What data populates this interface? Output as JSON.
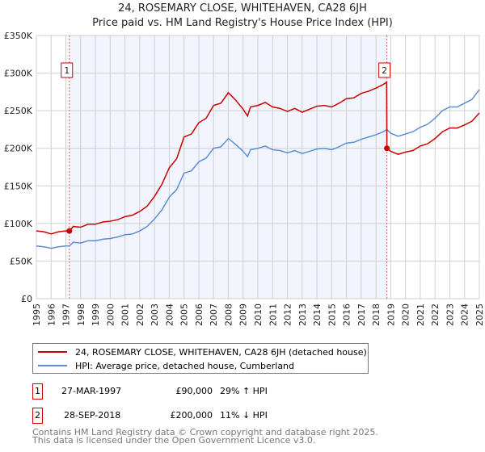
{
  "chart_data": {
    "type": "line",
    "title": "24, ROSEMARY CLOSE, WHITEHAVEN, CA28 6JH",
    "subtitle": "Price paid vs. HM Land Registry's House Price Index (HPI)",
    "xlim": [
      1995,
      2025
    ],
    "ylim": [
      0,
      350000
    ],
    "y_ticks": [
      0,
      50000,
      100000,
      150000,
      200000,
      250000,
      300000,
      350000
    ],
    "y_tick_labels": [
      "£0",
      "£50K",
      "£100K",
      "£150K",
      "£200K",
      "£250K",
      "£300K",
      "£350K"
    ],
    "x_ticks": [
      "1995",
      "1996",
      "1997",
      "1998",
      "1999",
      "2000",
      "2001",
      "2002",
      "2003",
      "2004",
      "2005",
      "2006",
      "2007",
      "2008",
      "2009",
      "2010",
      "2011",
      "2012",
      "2013",
      "2014",
      "2015",
      "2016",
      "2017",
      "2018",
      "2019",
      "2020",
      "2021",
      "2022",
      "2023",
      "2024",
      "2025"
    ],
    "grid": true,
    "shaded_range": [
      1997.23,
      2018.74
    ],
    "series": [
      {
        "name": "24, ROSEMARY CLOSE, WHITEHAVEN, CA28 6JH (detached house)",
        "color": "#cc0000",
        "x": [
          1995,
          1995.5,
          1996,
          1996.5,
          1997,
          1997.23,
          1997.5,
          1998,
          1998.5,
          1999,
          1999.5,
          2000,
          2000.5,
          2001,
          2001.5,
          2002,
          2002.5,
          2003,
          2003.5,
          2004,
          2004.5,
          2005,
          2005.5,
          2006,
          2006.5,
          2007,
          2007.5,
          2008,
          2008.5,
          2009,
          2009.3,
          2009.5,
          2010,
          2010.5,
          2011,
          2011.5,
          2012,
          2012.5,
          2013,
          2013.5,
          2014,
          2014.5,
          2015,
          2015.5,
          2016,
          2016.5,
          2017,
          2017.5,
          2018,
          2018.5,
          2018.72,
          2018.74,
          2019,
          2019.5,
          2020,
          2020.5,
          2021,
          2021.5,
          2022,
          2022.5,
          2023,
          2023.5,
          2024,
          2024.5,
          2025
        ],
        "y": [
          90,
          89,
          86,
          89,
          90,
          90,
          96,
          95,
          99,
          99,
          102,
          103,
          105,
          109,
          111,
          116,
          123,
          136,
          152,
          174,
          186,
          215,
          219,
          234,
          240,
          257,
          260,
          274,
          264,
          252,
          243,
          255,
          257,
          261,
          255,
          253,
          249,
          253,
          248,
          252,
          256,
          257,
          255,
          260,
          266,
          267,
          273,
          276,
          280,
          285,
          288,
          200,
          196,
          192,
          195,
          197,
          203,
          206,
          213,
          222,
          227,
          227,
          231,
          236,
          247
        ]
      },
      {
        "name": "HPI: Average price, detached house, Cumberland",
        "color": "#5b8fd4",
        "x": [
          1995,
          1995.5,
          1996,
          1996.5,
          1997,
          1997.23,
          1997.5,
          1998,
          1998.5,
          1999,
          1999.5,
          2000,
          2000.5,
          2001,
          2001.5,
          2002,
          2002.5,
          2003,
          2003.5,
          2004,
          2004.5,
          2005,
          2005.5,
          2006,
          2006.5,
          2007,
          2007.5,
          2008,
          2008.5,
          2009,
          2009.3,
          2009.5,
          2010,
          2010.5,
          2011,
          2011.5,
          2012,
          2012.5,
          2013,
          2013.5,
          2014,
          2014.5,
          2015,
          2015.5,
          2016,
          2016.5,
          2017,
          2017.5,
          2018,
          2018.5,
          2018.74,
          2019,
          2019.5,
          2020,
          2020.5,
          2021,
          2021.5,
          2022,
          2022.5,
          2023,
          2023.5,
          2024,
          2024.5,
          2025
        ],
        "y": [
          70,
          69,
          67,
          69,
          70,
          70,
          75,
          74,
          77,
          77,
          79,
          80,
          82,
          85,
          86,
          90,
          96,
          106,
          118,
          135,
          145,
          167,
          170,
          182,
          187,
          200,
          202,
          213,
          205,
          196,
          189,
          198,
          200,
          203,
          198,
          197,
          194,
          197,
          193,
          196,
          199,
          200,
          198,
          202,
          207,
          208,
          212,
          215,
          218,
          222,
          225,
          220,
          216,
          219,
          222,
          228,
          232,
          240,
          250,
          255,
          255,
          260,
          265,
          278
        ]
      }
    ],
    "y_units": "thousands GBP",
    "annotations": [
      {
        "label": "1",
        "x": 1997.23,
        "y": 90
      },
      {
        "label": "2",
        "x": 2018.74,
        "y": 200
      }
    ]
  },
  "legend": {
    "property": "24, ROSEMARY CLOSE, WHITEHAVEN, CA28 6JH (detached house)",
    "hpi": "HPI: Average price, detached house, Cumberland"
  },
  "transactions": [
    {
      "num": "1",
      "date": "27-MAR-1997",
      "price": "£90,000",
      "hpi": "29% ↑ HPI"
    },
    {
      "num": "2",
      "date": "28-SEP-2018",
      "price": "£200,000",
      "hpi": "11% ↓ HPI"
    }
  ],
  "footer": {
    "line1": "Contains HM Land Registry data © Crown copyright and database right 2025.",
    "line2": "This data is licensed under the Open Government Licence v3.0."
  }
}
